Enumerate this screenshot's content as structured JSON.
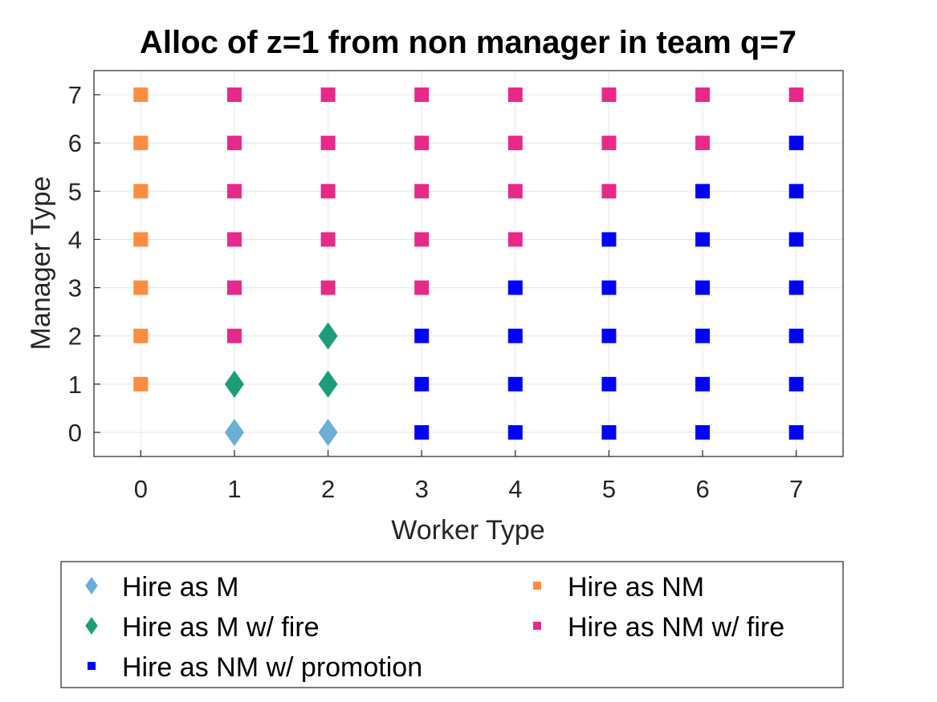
{
  "chart_data": {
    "type": "scatter",
    "title": "Alloc of z=1 from non manager in team q=7",
    "xlabel": "Worker Type",
    "ylabel": "Manager Type",
    "xlim": [
      -0.5,
      7.5
    ],
    "ylim": [
      -0.5,
      7.5
    ],
    "xticks": [
      "0",
      "1",
      "2",
      "3",
      "4",
      "5",
      "6",
      "7"
    ],
    "yticks": [
      "0",
      "1",
      "2",
      "3",
      "4",
      "5",
      "6",
      "7"
    ],
    "grid": true,
    "legend_position": "bottom",
    "series": [
      {
        "name": "Hire as M",
        "marker": "diamond",
        "color": "#6baed6",
        "points": [
          [
            1,
            0
          ],
          [
            2,
            0
          ]
        ]
      },
      {
        "name": "Hire as M w/ fire",
        "marker": "diamond",
        "color": "#1b9e77",
        "points": [
          [
            1,
            1
          ],
          [
            2,
            1
          ],
          [
            2,
            2
          ]
        ]
      },
      {
        "name": "Hire as NM w/ promotion",
        "marker": "square",
        "color": "#0000ff",
        "points": [
          [
            3,
            0
          ],
          [
            4,
            0
          ],
          [
            5,
            0
          ],
          [
            6,
            0
          ],
          [
            7,
            0
          ],
          [
            3,
            1
          ],
          [
            4,
            1
          ],
          [
            5,
            1
          ],
          [
            6,
            1
          ],
          [
            7,
            1
          ],
          [
            3,
            2
          ],
          [
            4,
            2
          ],
          [
            5,
            2
          ],
          [
            6,
            2
          ],
          [
            7,
            2
          ],
          [
            4,
            3
          ],
          [
            5,
            3
          ],
          [
            6,
            3
          ],
          [
            7,
            3
          ],
          [
            5,
            4
          ],
          [
            6,
            4
          ],
          [
            7,
            4
          ],
          [
            6,
            5
          ],
          [
            7,
            5
          ],
          [
            7,
            6
          ]
        ]
      },
      {
        "name": "Hire as NM",
        "marker": "square",
        "color": "#fd8d3c",
        "points": [
          [
            0,
            1
          ],
          [
            0,
            2
          ],
          [
            0,
            3
          ],
          [
            0,
            4
          ],
          [
            0,
            5
          ],
          [
            0,
            6
          ],
          [
            0,
            7
          ]
        ]
      },
      {
        "name": "Hire as NM w/ fire",
        "marker": "square",
        "color": "#e7298a",
        "points": [
          [
            1,
            2
          ],
          [
            1,
            3
          ],
          [
            1,
            4
          ],
          [
            1,
            5
          ],
          [
            1,
            6
          ],
          [
            1,
            7
          ],
          [
            2,
            3
          ],
          [
            2,
            4
          ],
          [
            2,
            5
          ],
          [
            2,
            6
          ],
          [
            2,
            7
          ],
          [
            3,
            3
          ],
          [
            3,
            4
          ],
          [
            3,
            5
          ],
          [
            3,
            6
          ],
          [
            3,
            7
          ],
          [
            4,
            4
          ],
          [
            4,
            5
          ],
          [
            4,
            6
          ],
          [
            4,
            7
          ],
          [
            5,
            5
          ],
          [
            5,
            6
          ],
          [
            5,
            7
          ],
          [
            6,
            6
          ],
          [
            6,
            7
          ],
          [
            7,
            7
          ]
        ]
      }
    ]
  }
}
